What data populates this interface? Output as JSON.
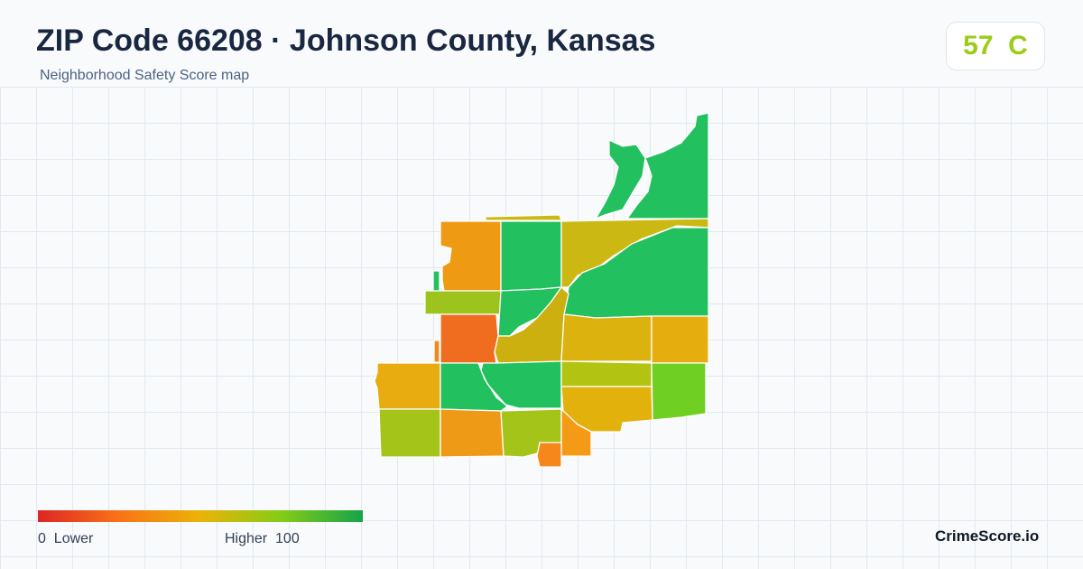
{
  "header": {
    "title": "ZIP Code 66208 · Johnson County, Kansas",
    "subtitle": "Neighborhood Safety Score map"
  },
  "score": {
    "display": "57  C",
    "value": 57,
    "grade": "C",
    "color": "#9acd17"
  },
  "map": {
    "type": "choropleth",
    "metric": "Neighborhood Safety Score",
    "region_colors": {
      "north-green-1": "#22c05e",
      "north-green-2": "#22c05e",
      "upper-green-strip": "#22c05e",
      "top-sliver-yellow": "#ccb812",
      "nw-orange": "#ee9a12",
      "small-green-tab": "#22c05e",
      "north-center-green": "#22c05e",
      "ne-yellow": "#ccb812",
      "east-green": "#22c05e",
      "lime-strip": "#9cc41c",
      "center-green": "#22c05e",
      "red-orange": "#f06d1f",
      "center-yellow": "#ccb010",
      "mid-yellow-1": "#dcb30e",
      "mid-yellow-2": "#e6ad0e",
      "sliver-orange": "#f08a1c",
      "west-amber": "#e8ac10",
      "center-green-2": "#22c05e",
      "yellow-green": "#b2c312",
      "bright-green": "#6fcf22",
      "yellow-orange": "#e3b10c",
      "sw-yellow-green": "#a4c41a",
      "south-orange": "#ee9a16",
      "south-lime": "#a4c41a",
      "south-orange-2": "#f59a16",
      "bottom-orange": "#f6871a"
    }
  },
  "legend": {
    "low_label": "0  Lower",
    "high_label": "Higher  100",
    "gradient": [
      "#dc2626",
      "#f97316",
      "#eab308",
      "#84cc16",
      "#16a34a"
    ]
  },
  "brand": "CrimeScore.io"
}
